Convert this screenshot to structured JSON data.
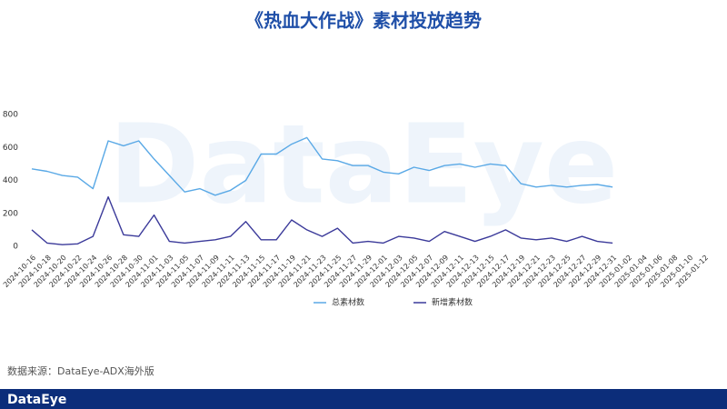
{
  "chart_data": {
    "type": "line",
    "title": "《热血大作战》素材投放趋势",
    "watermark": "DataEye",
    "source": "数据来源：DataEye-ADX海外版",
    "brand": "DataEye",
    "categories": [
      "2024-10-16",
      "2024-10-18",
      "2024-10-20",
      "2024-10-22",
      "2024-10-24",
      "2024-10-26",
      "2024-10-28",
      "2024-10-30",
      "2024-11-01",
      "2024-11-03",
      "2024-11-05",
      "2024-11-07",
      "2024-11-09",
      "2024-11-11",
      "2024-11-13",
      "2024-11-15",
      "2024-11-17",
      "2024-11-19",
      "2024-11-21",
      "2024-11-23",
      "2024-11-25",
      "2024-11-27",
      "2024-11-29",
      "2024-12-01",
      "2024-12-03",
      "2024-12-05",
      "2024-12-07",
      "2024-12-09",
      "2024-12-11",
      "2024-12-13",
      "2024-12-15",
      "2024-12-17",
      "2024-12-19",
      "2024-12-21",
      "2024-12-23",
      "2024-12-25",
      "2024-12-27",
      "2024-12-29",
      "2024-12-31",
      "2025-01-02",
      "2025-01-04",
      "2025-01-06",
      "2025-01-08",
      "2025-01-10",
      "2025-01-12"
    ],
    "series": [
      {
        "name": "总素材数",
        "color": "#5aa9e6",
        "values": [
          470,
          455,
          430,
          420,
          350,
          640,
          610,
          640,
          530,
          430,
          330,
          350,
          310,
          340,
          400,
          560,
          560,
          620,
          660,
          530,
          520,
          490,
          490,
          450,
          440,
          480,
          460,
          490,
          500,
          480,
          500,
          490,
          380,
          360,
          370,
          360,
          370,
          375,
          360,
          null,
          null,
          null,
          null,
          null,
          null
        ]
      },
      {
        "name": "新增素材数",
        "color": "#3b3a9a",
        "values": [
          100,
          20,
          10,
          15,
          60,
          300,
          70,
          60,
          190,
          30,
          20,
          30,
          40,
          60,
          150,
          40,
          40,
          160,
          100,
          60,
          110,
          20,
          30,
          20,
          60,
          50,
          30,
          90,
          60,
          30,
          60,
          100,
          50,
          40,
          50,
          30,
          60,
          30,
          20,
          null,
          null,
          null,
          null,
          null,
          null
        ]
      }
    ],
    "ylim": [
      0,
      800
    ],
    "yticks": [
      0,
      200,
      400,
      600,
      800
    ],
    "grid": false,
    "legend": "bottom"
  }
}
